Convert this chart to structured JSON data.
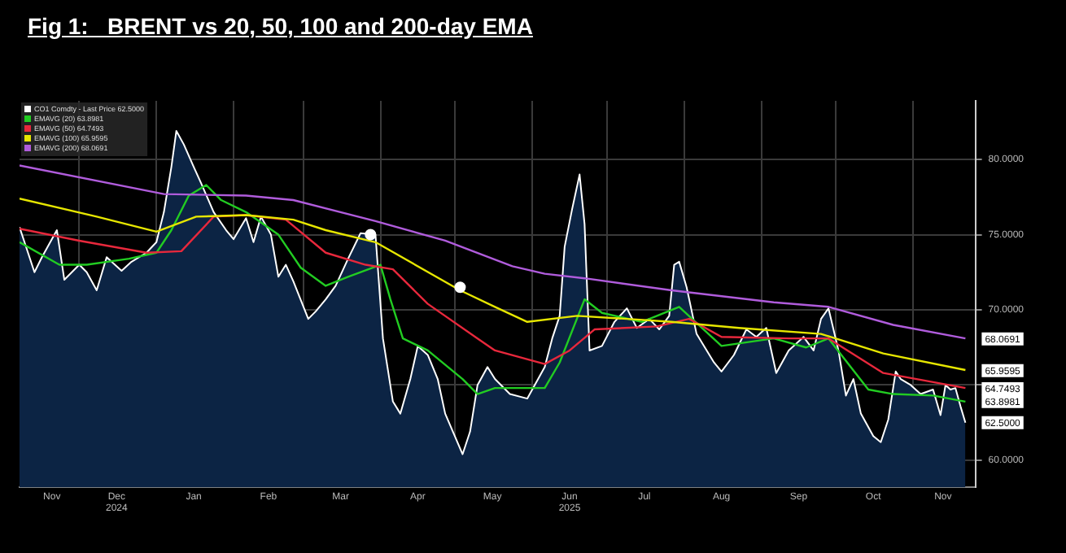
{
  "chart_data": {
    "type": "area",
    "title": "Fig 1:   BRENT vs 20, 50, 100 and 200-day EMA",
    "series": [
      {
        "name": "CO1 Comdty - Last Price 62.5000",
        "color": "#ffffff",
        "x": [
          "2024-11-07",
          "2024-11-13",
          "2024-11-16",
          "2024-11-22",
          "2024-11-25",
          "2024-12-01",
          "2024-12-04",
          "2024-12-08",
          "2024-12-12",
          "2024-12-18",
          "2024-12-22",
          "2024-12-28",
          "2025-01-01",
          "2025-01-04",
          "2025-01-07",
          "2025-01-09",
          "2025-01-12",
          "2025-01-16",
          "2025-01-19",
          "2025-01-24",
          "2025-01-29",
          "2025-02-01",
          "2025-02-06",
          "2025-02-09",
          "2025-02-12",
          "2025-02-16",
          "2025-02-19",
          "2025-02-22",
          "2025-02-25",
          "2025-03-03",
          "2025-03-06",
          "2025-03-10",
          "2025-03-14",
          "2025-03-19",
          "2025-03-24",
          "2025-03-30",
          "2025-04-02",
          "2025-04-06",
          "2025-04-09",
          "2025-04-13",
          "2025-04-16",
          "2025-04-20",
          "2025-04-24",
          "2025-04-27",
          "2025-05-04",
          "2025-05-07",
          "2025-05-10",
          "2025-05-14",
          "2025-05-17",
          "2025-05-23",
          "2025-05-30",
          "2025-06-06",
          "2025-06-09",
          "2025-06-12",
          "2025-06-14",
          "2025-06-17",
          "2025-06-20",
          "2025-06-22",
          "2025-06-24",
          "2025-06-29",
          "2025-07-04",
          "2025-07-09",
          "2025-07-13",
          "2025-07-18",
          "2025-07-22",
          "2025-07-26",
          "2025-07-28",
          "2025-07-30",
          "2025-08-02",
          "2025-08-06",
          "2025-08-13",
          "2025-08-16",
          "2025-08-21",
          "2025-08-26",
          "2025-08-30",
          "2025-09-03",
          "2025-09-07",
          "2025-09-12",
          "2025-09-18",
          "2025-09-22",
          "2025-09-25",
          "2025-09-28",
          "2025-10-02",
          "2025-10-05",
          "2025-10-08",
          "2025-10-11",
          "2025-10-16",
          "2025-10-19",
          "2025-10-22",
          "2025-10-25",
          "2025-10-27",
          "2025-10-31",
          "2025-11-04",
          "2025-11-09",
          "2025-11-12",
          "2025-11-14",
          "2025-11-16",
          "2025-11-18",
          "2025-11-20",
          "2025-11-22"
        ],
        "values": [
          75.5,
          72.5,
          73.5,
          75.3,
          72.0,
          73.0,
          72.5,
          71.3,
          73.5,
          72.6,
          73.2,
          73.8,
          74.5,
          76.5,
          79.5,
          81.9,
          81.0,
          79.5,
          78.4,
          76.5,
          75.3,
          74.7,
          76.1,
          74.5,
          76.2,
          75.0,
          72.2,
          73.0,
          71.9,
          69.4,
          69.9,
          70.7,
          71.6,
          73.4,
          75.1,
          75.0,
          68.1,
          63.9,
          63.1,
          65.4,
          67.6,
          67.0,
          65.4,
          63.1,
          60.4,
          61.9,
          65.0,
          66.2,
          65.4,
          64.4,
          64.1,
          66.2,
          68.1,
          69.6,
          74.2,
          76.7,
          79.0,
          75.7,
          67.3,
          67.6,
          69.2,
          70.1,
          68.8,
          69.4,
          68.7,
          69.6,
          73.0,
          73.2,
          71.5,
          68.4,
          66.5,
          65.9,
          67.0,
          68.7,
          68.2,
          68.8,
          65.8,
          67.3,
          68.2,
          67.3,
          69.4,
          70.1,
          67.3,
          64.3,
          65.4,
          63.1,
          61.6,
          61.2,
          62.7,
          65.9,
          65.4,
          65.0,
          64.4,
          64.7,
          63.0,
          65.0,
          64.7,
          64.8,
          63.6,
          62.5
        ]
      },
      {
        "name": "EMAVG (20) 63.8981",
        "color": "#22cc22",
        "type": "line",
        "x": [
          "2024-11-07",
          "2024-11-23",
          "2024-12-04",
          "2024-12-21",
          "2025-01-01",
          "2025-01-07",
          "2025-01-14",
          "2025-01-21",
          "2025-01-27",
          "2025-02-06",
          "2025-02-19",
          "2025-02-28",
          "2025-03-10",
          "2025-03-19",
          "2025-04-01",
          "2025-04-05",
          "2025-04-10",
          "2025-04-20",
          "2025-05-04",
          "2025-05-10",
          "2025-05-17",
          "2025-06-06",
          "2025-06-12",
          "2025-06-22",
          "2025-06-29",
          "2025-07-15",
          "2025-07-30",
          "2025-08-16",
          "2025-09-06",
          "2025-09-19",
          "2025-09-28",
          "2025-10-14",
          "2025-10-24",
          "2025-11-09",
          "2025-11-22"
        ],
        "values": [
          74.5,
          73.0,
          73.0,
          73.4,
          73.8,
          75.3,
          77.6,
          78.3,
          77.3,
          76.5,
          75.0,
          72.8,
          71.6,
          72.2,
          73.0,
          70.7,
          68.1,
          67.3,
          65.4,
          64.4,
          64.8,
          64.8,
          66.5,
          70.7,
          69.8,
          69.2,
          70.2,
          67.6,
          68.1,
          67.5,
          68.1,
          64.7,
          64.4,
          64.3,
          63.9
        ]
      },
      {
        "name": "EMAVG (50) 64.7493",
        "color": "#e8283c",
        "type": "line",
        "x": [
          "2024-11-07",
          "2024-12-01",
          "2024-12-28",
          "2025-01-11",
          "2025-01-24",
          "2025-02-06",
          "2025-02-22",
          "2025-03-10",
          "2025-03-26",
          "2025-04-06",
          "2025-04-20",
          "2025-05-10",
          "2025-05-17",
          "2025-06-06",
          "2025-06-16",
          "2025-06-26",
          "2025-07-21",
          "2025-08-03",
          "2025-08-16",
          "2025-09-12",
          "2025-09-28",
          "2025-10-20",
          "2025-11-22"
        ],
        "values": [
          75.4,
          74.6,
          73.8,
          73.9,
          76.2,
          76.3,
          76.0,
          73.8,
          73.0,
          72.7,
          70.4,
          68.1,
          67.3,
          66.4,
          67.3,
          68.7,
          68.9,
          69.4,
          68.2,
          68.1,
          68.1,
          65.8,
          64.8
        ]
      },
      {
        "name": "EMAVG (100) 65.9595",
        "color": "#e6e600",
        "type": "line",
        "x": [
          "2024-11-07",
          "2024-12-08",
          "2025-01-01",
          "2025-01-17",
          "2025-02-06",
          "2025-02-25",
          "2025-03-10",
          "2025-03-30",
          "2025-05-03",
          "2025-05-17",
          "2025-05-30",
          "2025-06-19",
          "2025-07-09",
          "2025-07-27",
          "2025-08-23",
          "2025-09-25",
          "2025-10-20",
          "2025-11-22"
        ],
        "values": [
          77.4,
          76.2,
          75.2,
          76.2,
          76.3,
          76.0,
          75.3,
          74.5,
          71.3,
          70.2,
          69.2,
          69.6,
          69.4,
          69.2,
          68.8,
          68.4,
          67.1,
          66.0
        ]
      },
      {
        "name": "EMAVG (200) 68.0691",
        "color": "#b05cdc",
        "type": "line",
        "x": [
          "2024-11-07",
          "2025-01-04",
          "2025-02-06",
          "2025-02-25",
          "2025-03-30",
          "2025-04-27",
          "2025-05-24",
          "2025-06-06",
          "2025-06-22",
          "2025-07-27",
          "2025-09-06",
          "2025-09-28",
          "2025-10-24",
          "2025-11-22"
        ],
        "values": [
          79.6,
          77.7,
          77.6,
          77.3,
          75.9,
          74.6,
          72.9,
          72.4,
          72.1,
          71.3,
          70.5,
          70.2,
          69.0,
          68.1
        ]
      },
      {
        "color": "#ffffff",
        "type": "scatter",
        "marker": "circle",
        "x": [
          "2025-03-28",
          "2025-05-03"
        ],
        "values": [
          75.0,
          71.5
        ]
      }
    ],
    "xlim": [
      "2024-11-07",
      "2025-11-26"
    ],
    "xticks": [
      {
        "value": "2024-11-20",
        "label": "Nov"
      },
      {
        "value": "2024-12-01",
        "label": null
      },
      {
        "value": "2024-12-16",
        "label": "Dec\n2024"
      },
      {
        "value": "2025-01-01",
        "label": null
      },
      {
        "value": "2025-01-16",
        "label": "Jan"
      },
      {
        "value": "2025-02-01",
        "label": null
      },
      {
        "value": "2025-02-15",
        "label": "Feb"
      },
      {
        "value": "2025-03-01",
        "label": null
      },
      {
        "value": "2025-03-16",
        "label": "Mar"
      },
      {
        "value": "2025-04-01",
        "label": null
      },
      {
        "value": "2025-04-16",
        "label": "Apr"
      },
      {
        "value": "2025-05-01",
        "label": null
      },
      {
        "value": "2025-05-16",
        "label": "May"
      },
      {
        "value": "2025-06-01",
        "label": null
      },
      {
        "value": "2025-06-16",
        "label": "Jun\n2025"
      },
      {
        "value": "2025-07-01",
        "label": null
      },
      {
        "value": "2025-07-16",
        "label": "Jul"
      },
      {
        "value": "2025-08-01",
        "label": null
      },
      {
        "value": "2025-08-16",
        "label": "Aug"
      },
      {
        "value": "2025-09-01",
        "label": null
      },
      {
        "value": "2025-09-16",
        "label": "Sep"
      },
      {
        "value": "2025-10-01",
        "label": null
      },
      {
        "value": "2025-10-16",
        "label": "Oct"
      },
      {
        "value": "2025-11-01",
        "label": null
      },
      {
        "value": "2025-11-13",
        "label": "Nov"
      }
    ],
    "ylim": [
      58.2,
      83.9
    ],
    "yticks": [
      {
        "value": 60,
        "label": "60.0000"
      },
      {
        "value": 65,
        "label": null
      },
      {
        "value": 70,
        "label": "70.0000"
      },
      {
        "value": 75,
        "label": "75.0000"
      },
      {
        "value": 80,
        "label": "80.0000"
      }
    ],
    "grid": true,
    "legend": "top left",
    "annotations": [
      {
        "text": "68.0691",
        "x": "2025-11-22",
        "y": 68.0691
      },
      {
        "text": "65.9595",
        "x": "2025-11-22",
        "y": 65.9595
      },
      {
        "text": "64.7493",
        "x": "2025-11-22",
        "y": 64.7493
      },
      {
        "text": "63.8981",
        "x": "2025-11-22",
        "y": 63.8981
      },
      {
        "text": "62.5000",
        "x": "2025-11-22",
        "y": 62.5
      }
    ]
  }
}
